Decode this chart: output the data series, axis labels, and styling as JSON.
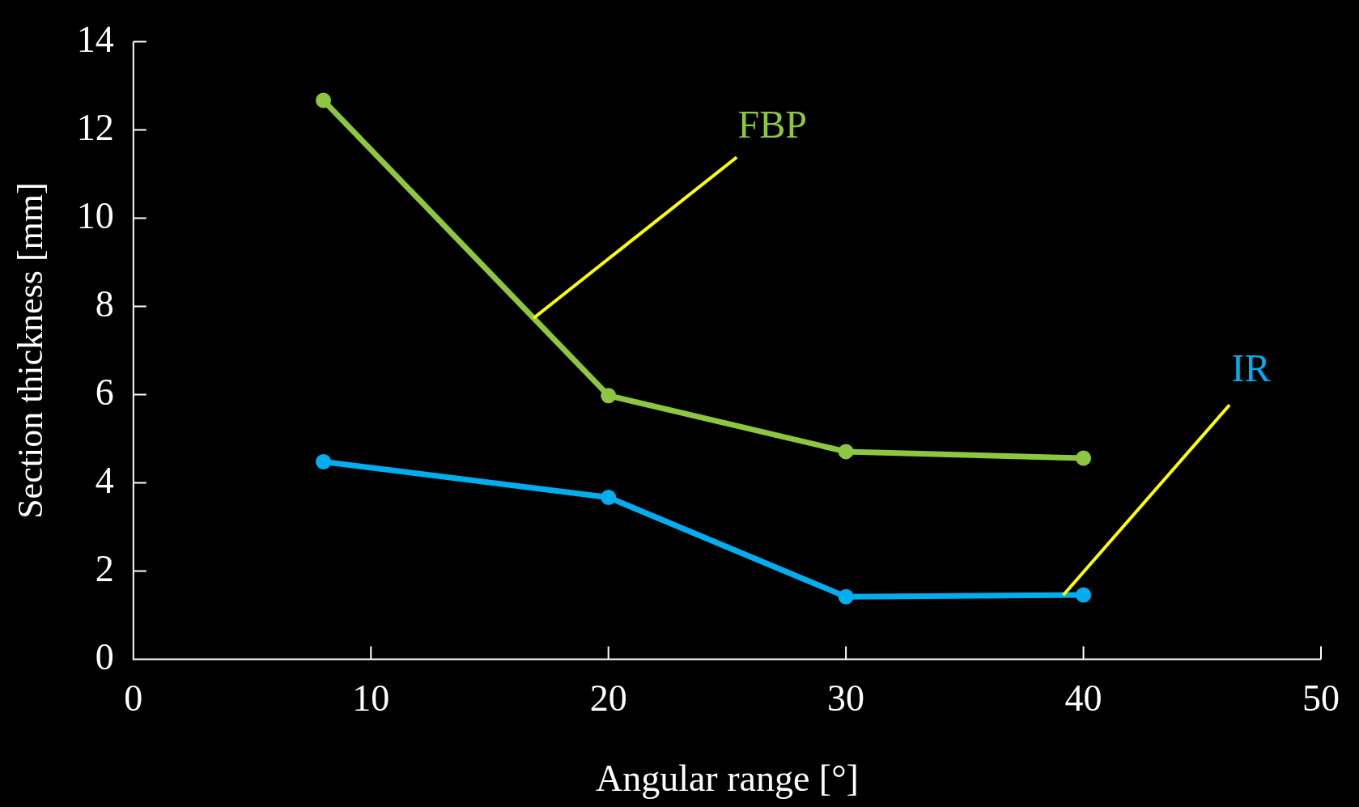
{
  "chart_data": {
    "type": "line",
    "xlabel": "Angular range [°]",
    "ylabel": "Section thickness [mm]",
    "xlim": [
      0,
      50
    ],
    "xticks": [
      0,
      10,
      20,
      30,
      40,
      50
    ],
    "ylim": [
      0,
      14
    ],
    "yticks": [
      0,
      2,
      4,
      6,
      8,
      10,
      12,
      14
    ],
    "grid": false,
    "legend": false,
    "marker": "circle",
    "line_style": "solid",
    "series": [
      {
        "name": "FBP",
        "color": "#8dc63f",
        "x": [
          8,
          20,
          30,
          40
        ],
        "values": [
          12.67,
          5.98,
          4.71,
          4.56
        ]
      },
      {
        "name": "IR",
        "color": "#00aeef",
        "x": [
          8,
          20,
          30,
          40
        ],
        "values": [
          4.48,
          3.67,
          1.42,
          1.46
        ]
      }
    ]
  }
}
